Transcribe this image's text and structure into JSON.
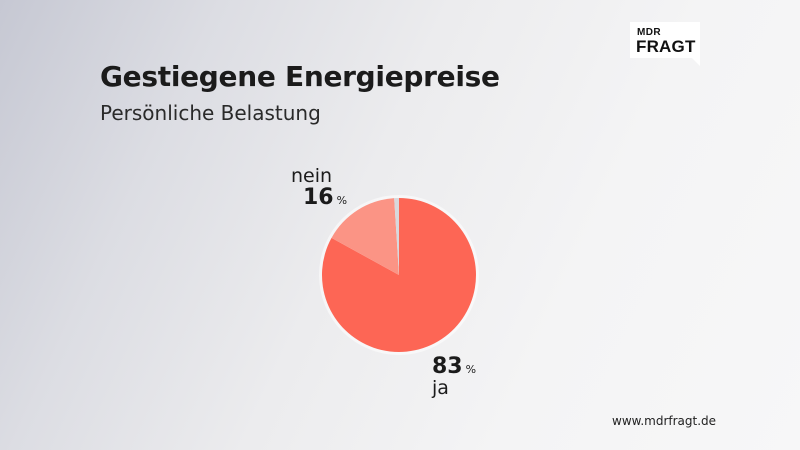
{
  "header": {
    "title": "Gestiegene Energiepreise",
    "subtitle": "Persönliche Belastung"
  },
  "logo": {
    "line1": "MDR",
    "line2": "FRAGT"
  },
  "footer": {
    "url": "www.mdrfragt.de"
  },
  "colors": {
    "ja": "#fd6655",
    "nein": "#fb9485",
    "rest": "#d8d8dc"
  },
  "chart_data": {
    "type": "pie",
    "title": "Gestiegene Energiepreise",
    "subtitle": "Persönliche Belastung",
    "unit": "%",
    "slices": [
      {
        "label": "ja",
        "value": 83,
        "color": "#fd6655"
      },
      {
        "label": "nein",
        "value": 16,
        "color": "#fb9485"
      },
      {
        "label": "",
        "value": 1,
        "color": "#d8d8dc"
      }
    ]
  }
}
